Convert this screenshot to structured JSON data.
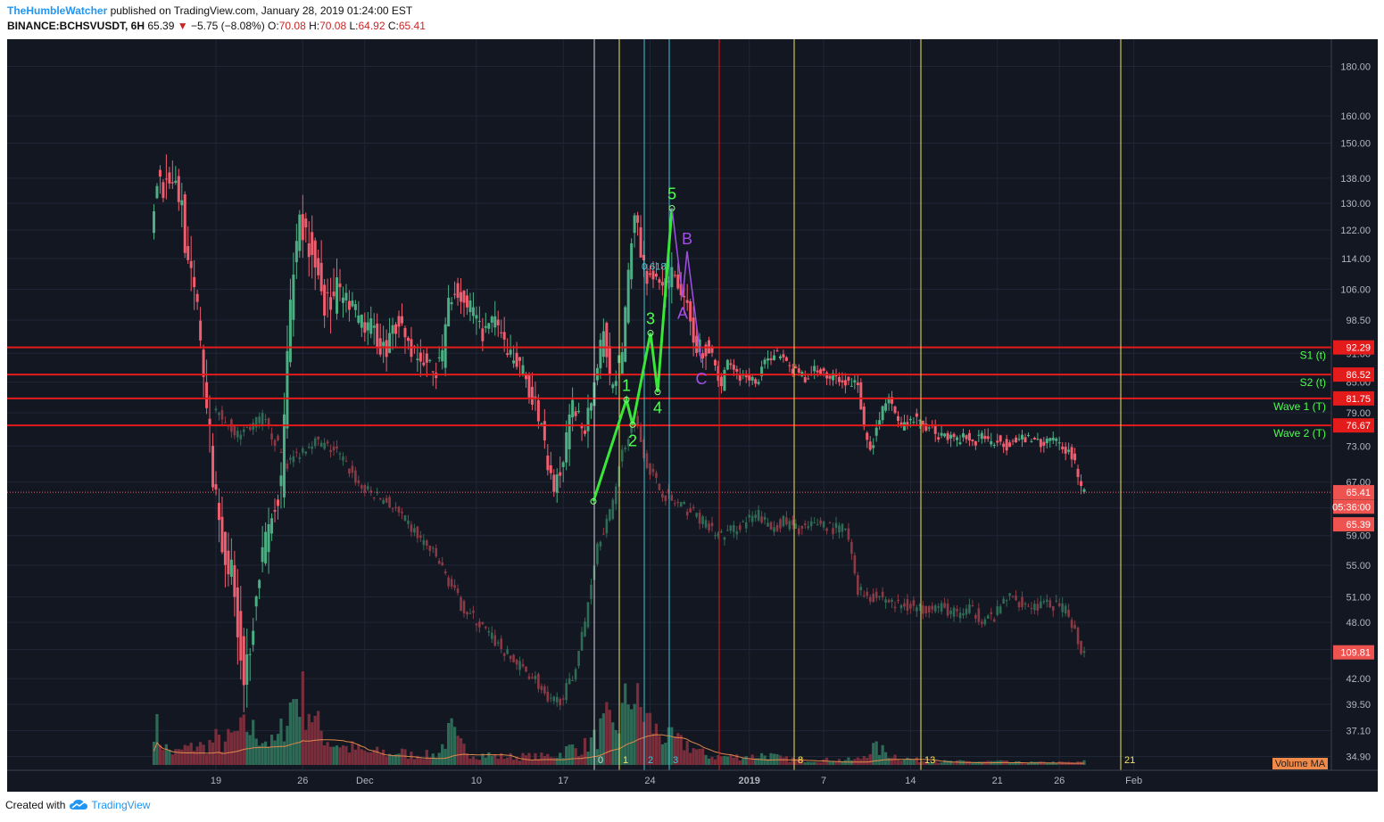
{
  "header": {
    "author": "TheHumbleWatcher",
    "published": " published on TradingView.com, January 28, 2019 01:24:00 EST",
    "symbol": "BINANCE:BCHSVUSDT, 6H",
    "last": "65.39",
    "change": "−5.75 (−8.08%)",
    "o_label": "O:",
    "o_value": "70.08",
    "h_label": "H:",
    "h_value": "70.08",
    "l_label": "L:",
    "l_value": "64.92",
    "c_label": "C:",
    "c_value": "65.41"
  },
  "footer": {
    "created": "Created with",
    "brand": "TradingView"
  },
  "colors": {
    "background": "#131722",
    "grid": "#1f2636",
    "up": "#4caf84",
    "down": "#ef5d6e",
    "up_vol": "#2e6b57",
    "down_vol": "#7a2e3c",
    "red_line": "#e31b1b",
    "green_text": "#4cff4c",
    "fib_yellow": "#f5e45a",
    "fib_cyan": "#3cc7d6",
    "purple": "#a24fe6",
    "vol_ma": "#e0884a"
  },
  "chart_data": {
    "type": "candlestick",
    "y_scale": "log",
    "ylim": [
      34.2,
      188
    ],
    "y_ticks": [
      "180.00",
      "160.00",
      "150.00",
      "138.00",
      "130.00",
      "122.00",
      "114.00",
      "106.00",
      "98.50",
      "91.00",
      "85.00",
      "79.00",
      "73.00",
      "67.00",
      "63.00",
      "59.00",
      "55.00",
      "51.00",
      "48.00",
      "45.00",
      "42.00",
      "39.50",
      "37.10",
      "34.90"
    ],
    "x_ticks": [
      {
        "label": "19",
        "day": 0
      },
      {
        "label": "26",
        "day": 7
      },
      {
        "label": "Dec",
        "day": 12
      },
      {
        "label": "10",
        "day": 21
      },
      {
        "label": "17",
        "day": 28
      },
      {
        "label": "24",
        "day": 35
      },
      {
        "label": "2019",
        "day": 43
      },
      {
        "label": "7",
        "day": 49
      },
      {
        "label": "14",
        "day": 56
      },
      {
        "label": "21",
        "day": 63
      },
      {
        "label": "26",
        "day": 68
      },
      {
        "label": "Feb",
        "day": 74
      }
    ],
    "xlim_days": [
      -5.2,
      77.5
    ],
    "price_path": [
      [
        -5,
        120
      ],
      [
        -4.5,
        140
      ],
      [
        -4,
        135
      ],
      [
        -3.5,
        140
      ],
      [
        -3,
        135
      ],
      [
        -2.5,
        130
      ],
      [
        -2,
        110
      ],
      [
        -1.5,
        105
      ],
      [
        -1,
        95
      ],
      [
        -0.5,
        80
      ],
      [
        0,
        68
      ],
      [
        0.5,
        62
      ],
      [
        1,
        56
      ],
      [
        1.5,
        54
      ],
      [
        2,
        48
      ],
      [
        2.5,
        42
      ],
      [
        3,
        46
      ],
      [
        3.5,
        52
      ],
      [
        4,
        56
      ],
      [
        4.5,
        60
      ],
      [
        5,
        62
      ],
      [
        5.5,
        66
      ],
      [
        6,
        90
      ],
      [
        6.5,
        110
      ],
      [
        7,
        125
      ],
      [
        7.5,
        120
      ],
      [
        8,
        115
      ],
      [
        8.5,
        110
      ],
      [
        9,
        103
      ],
      [
        9.5,
        102
      ],
      [
        10,
        105
      ],
      [
        10.5,
        104
      ],
      [
        11,
        102
      ],
      [
        11.5,
        100
      ],
      [
        12,
        98
      ],
      [
        12.5,
        97
      ],
      [
        13,
        96
      ],
      [
        13.5,
        93
      ],
      [
        14,
        92
      ],
      [
        14.5,
        96
      ],
      [
        15,
        99
      ],
      [
        15.5,
        95
      ],
      [
        16,
        92
      ],
      [
        16.5,
        90
      ],
      [
        17,
        89
      ],
      [
        17.5,
        88
      ],
      [
        18,
        88
      ],
      [
        18.5,
        90
      ],
      [
        19,
        104
      ],
      [
        19.5,
        106
      ],
      [
        20,
        104
      ],
      [
        20.5,
        102
      ],
      [
        21,
        100
      ],
      [
        21.5,
        96
      ],
      [
        22,
        96
      ],
      [
        22.5,
        98
      ],
      [
        23,
        96
      ],
      [
        23.5,
        93
      ],
      [
        24,
        91
      ],
      [
        24.5,
        89
      ],
      [
        25,
        87
      ],
      [
        25.5,
        84
      ],
      [
        26,
        80
      ],
      [
        26.5,
        76
      ],
      [
        27,
        70
      ],
      [
        27.5,
        66
      ],
      [
        28,
        68
      ],
      [
        28.5,
        74
      ],
      [
        29,
        81
      ],
      [
        29.5,
        78
      ],
      [
        30,
        77
      ],
      [
        30.5,
        82
      ],
      [
        31,
        88
      ],
      [
        31.5,
        96
      ],
      [
        32,
        85
      ],
      [
        32.5,
        87
      ],
      [
        33,
        90
      ],
      [
        33.5,
        110
      ],
      [
        34,
        128
      ],
      [
        34.5,
        116
      ],
      [
        35,
        110
      ],
      [
        35.5,
        108
      ],
      [
        36,
        106
      ],
      [
        36.5,
        107
      ],
      [
        37,
        110
      ],
      [
        37.5,
        108
      ],
      [
        38,
        104
      ],
      [
        38.5,
        97
      ],
      [
        39,
        93
      ],
      [
        39.5,
        92
      ],
      [
        40,
        92
      ],
      [
        40.5,
        88
      ],
      [
        41,
        84
      ],
      [
        41.5,
        90
      ],
      [
        42,
        88
      ],
      [
        42.5,
        86
      ],
      [
        43,
        87
      ],
      [
        43.5,
        85
      ],
      [
        44,
        86
      ],
      [
        44.5,
        90
      ],
      [
        45,
        90
      ],
      [
        45.5,
        91
      ],
      [
        46,
        90
      ],
      [
        46.5,
        88
      ],
      [
        47,
        87
      ],
      [
        47.5,
        86
      ],
      [
        48,
        86
      ],
      [
        48.5,
        88
      ],
      [
        49,
        87
      ],
      [
        49.5,
        86
      ],
      [
        50,
        86
      ],
      [
        50.5,
        85
      ],
      [
        51,
        85
      ],
      [
        51.5,
        85
      ],
      [
        52,
        84
      ],
      [
        52.5,
        76
      ],
      [
        53,
        72
      ],
      [
        53.5,
        76
      ],
      [
        54,
        80
      ],
      [
        54.5,
        82
      ],
      [
        55,
        78
      ],
      [
        55.5,
        76
      ],
      [
        56,
        77
      ],
      [
        56.5,
        78
      ],
      [
        57,
        77
      ],
      [
        57.5,
        76
      ],
      [
        58,
        76
      ],
      [
        58.5,
        75
      ],
      [
        59,
        75
      ],
      [
        59.5,
        75
      ],
      [
        60,
        74
      ],
      [
        60.5,
        75
      ],
      [
        61,
        74
      ],
      [
        61.5,
        74
      ],
      [
        62,
        75
      ],
      [
        62.5,
        74
      ],
      [
        63,
        74
      ],
      [
        63.5,
        74
      ],
      [
        64,
        73
      ],
      [
        64.5,
        74
      ],
      [
        65,
        75
      ],
      [
        65.5,
        74
      ],
      [
        66,
        74
      ],
      [
        66.5,
        74
      ],
      [
        67,
        73
      ],
      [
        67.5,
        74
      ],
      [
        68,
        74
      ],
      [
        68.5,
        73
      ],
      [
        69,
        72
      ],
      [
        69.5,
        70
      ],
      [
        70,
        66
      ]
    ],
    "volume_path": [
      [
        -5,
        0.55
      ],
      [
        -4.5,
        0.3
      ],
      [
        -4,
        0.2
      ],
      [
        -3.5,
        0.15
      ],
      [
        -3,
        0.15
      ],
      [
        -2.5,
        0.2
      ],
      [
        -2,
        0.2
      ],
      [
        -1.5,
        0.25
      ],
      [
        -1,
        0.2
      ],
      [
        -0.5,
        0.25
      ],
      [
        0,
        0.3
      ],
      [
        0.5,
        0.25
      ],
      [
        1,
        0.3
      ],
      [
        1.5,
        0.35
      ],
      [
        2,
        0.4
      ],
      [
        2.5,
        0.45
      ],
      [
        3,
        0.4
      ],
      [
        3.5,
        0.35
      ],
      [
        4,
        0.3
      ],
      [
        4.5,
        0.25
      ],
      [
        5,
        0.3
      ],
      [
        5.5,
        0.5
      ],
      [
        6,
        0.7
      ],
      [
        6.5,
        0.85
      ],
      [
        7,
        0.8
      ],
      [
        7.5,
        0.7
      ],
      [
        8,
        0.5
      ],
      [
        8.5,
        0.4
      ],
      [
        9,
        0.3
      ],
      [
        9.5,
        0.25
      ],
      [
        10,
        0.25
      ],
      [
        10.5,
        0.2
      ],
      [
        11,
        0.2
      ],
      [
        11.5,
        0.18
      ],
      [
        12,
        0.15
      ],
      [
        12.5,
        0.15
      ],
      [
        13,
        0.15
      ],
      [
        13.5,
        0.15
      ],
      [
        14,
        0.12
      ],
      [
        14.5,
        0.15
      ],
      [
        15,
        0.15
      ],
      [
        15.5,
        0.12
      ],
      [
        16,
        0.12
      ],
      [
        16.5,
        0.12
      ],
      [
        17,
        0.12
      ],
      [
        17.5,
        0.12
      ],
      [
        18,
        0.15
      ],
      [
        18.5,
        0.3
      ],
      [
        19,
        0.4
      ],
      [
        19.5,
        0.25
      ],
      [
        20,
        0.2
      ],
      [
        20.5,
        0.15
      ],
      [
        21,
        0.12
      ],
      [
        21.5,
        0.12
      ],
      [
        22,
        0.12
      ],
      [
        22.5,
        0.1
      ],
      [
        23,
        0.1
      ],
      [
        23.5,
        0.1
      ],
      [
        24,
        0.1
      ],
      [
        24.5,
        0.1
      ],
      [
        25,
        0.1
      ],
      [
        25.5,
        0.1
      ],
      [
        26,
        0.1
      ],
      [
        26.5,
        0.1
      ],
      [
        27,
        0.12
      ],
      [
        27.5,
        0.12
      ],
      [
        28,
        0.15
      ],
      [
        28.5,
        0.2
      ],
      [
        29,
        0.2
      ],
      [
        29.5,
        0.2
      ],
      [
        30,
        0.25
      ],
      [
        30.5,
        0.3
      ],
      [
        31,
        0.4
      ],
      [
        31.5,
        0.5
      ],
      [
        32,
        0.4
      ],
      [
        32.5,
        0.5
      ],
      [
        33,
        0.7
      ],
      [
        33.5,
        0.9
      ],
      [
        34,
        0.7
      ],
      [
        34.5,
        0.6
      ],
      [
        35,
        0.5
      ],
      [
        35.5,
        0.4
      ],
      [
        36,
        0.35
      ],
      [
        36.5,
        0.3
      ],
      [
        37,
        0.3
      ],
      [
        37.5,
        0.25
      ],
      [
        38,
        0.25
      ],
      [
        38.5,
        0.2
      ],
      [
        39,
        0.15
      ],
      [
        39.5,
        0.12
      ],
      [
        40,
        0.1
      ],
      [
        40.5,
        0.1
      ],
      [
        41,
        0.1
      ],
      [
        41.5,
        0.1
      ],
      [
        42,
        0.1
      ],
      [
        42.5,
        0.1
      ],
      [
        43,
        0.1
      ],
      [
        43.5,
        0.1
      ],
      [
        44,
        0.12
      ],
      [
        44.5,
        0.12
      ],
      [
        45,
        0.1
      ],
      [
        45.5,
        0.08
      ],
      [
        46,
        0.07
      ],
      [
        46.5,
        0.07
      ],
      [
        47,
        0.06
      ],
      [
        47.5,
        0.06
      ],
      [
        48,
        0.06
      ],
      [
        48.5,
        0.06
      ],
      [
        49,
        0.06
      ],
      [
        49.5,
        0.06
      ],
      [
        50,
        0.06
      ],
      [
        50.5,
        0.06
      ],
      [
        51,
        0.06
      ],
      [
        51.5,
        0.06
      ],
      [
        52,
        0.08
      ],
      [
        52.5,
        0.15
      ],
      [
        53,
        0.2
      ],
      [
        53.5,
        0.18
      ],
      [
        54,
        0.15
      ],
      [
        54.5,
        0.12
      ],
      [
        55,
        0.1
      ],
      [
        55.5,
        0.08
      ],
      [
        56,
        0.07
      ],
      [
        56.5,
        0.06
      ],
      [
        57,
        0.05
      ],
      [
        57.5,
        0.05
      ],
      [
        58,
        0.05
      ],
      [
        58.5,
        0.04
      ],
      [
        59,
        0.04
      ],
      [
        59.5,
        0.04
      ],
      [
        60,
        0.04
      ],
      [
        60.5,
        0.04
      ],
      [
        61,
        0.04
      ],
      [
        61.5,
        0.04
      ],
      [
        62,
        0.04
      ],
      [
        62.5,
        0.04
      ],
      [
        63,
        0.04
      ],
      [
        63.5,
        0.04
      ],
      [
        64,
        0.03
      ],
      [
        64.5,
        0.03
      ],
      [
        65,
        0.03
      ],
      [
        65.5,
        0.03
      ],
      [
        66,
        0.03
      ],
      [
        66.5,
        0.03
      ],
      [
        67,
        0.03
      ],
      [
        67.5,
        0.03
      ],
      [
        68,
        0.03
      ],
      [
        68.5,
        0.03
      ],
      [
        69,
        0.03
      ],
      [
        69.5,
        0.03
      ],
      [
        70,
        0.04
      ]
    ],
    "volume_ma_label": "Volume MA",
    "overlay_path": [
      [
        0,
        80
      ],
      [
        2,
        75
      ],
      [
        4,
        78
      ],
      [
        6,
        70
      ],
      [
        8,
        74
      ],
      [
        10,
        72
      ],
      [
        12,
        66
      ],
      [
        14,
        64
      ],
      [
        16,
        60
      ],
      [
        18,
        56
      ],
      [
        20,
        50
      ],
      [
        22,
        47
      ],
      [
        24,
        44
      ],
      [
        26,
        42
      ],
      [
        27,
        39.5
      ],
      [
        28,
        40
      ],
      [
        29,
        42
      ],
      [
        30,
        48
      ],
      [
        31,
        58
      ],
      [
        32,
        62
      ],
      [
        33,
        72
      ],
      [
        34,
        78
      ],
      [
        35,
        70
      ],
      [
        36,
        66
      ],
      [
        37,
        64
      ],
      [
        38,
        63
      ],
      [
        39,
        62
      ],
      [
        40,
        60
      ],
      [
        41,
        59
      ],
      [
        42,
        60
      ],
      [
        43,
        61
      ],
      [
        44,
        62
      ],
      [
        45,
        60
      ],
      [
        46,
        61
      ],
      [
        47,
        60
      ],
      [
        48,
        60
      ],
      [
        49,
        61
      ],
      [
        50,
        60
      ],
      [
        51,
        60
      ],
      [
        52,
        52
      ],
      [
        53,
        51
      ],
      [
        54,
        51
      ],
      [
        55,
        50
      ],
      [
        56,
        50
      ],
      [
        57,
        49.5
      ],
      [
        58,
        50
      ],
      [
        59,
        49.5
      ],
      [
        60,
        49
      ],
      [
        61,
        49.5
      ],
      [
        62,
        48.5
      ],
      [
        63,
        48.5
      ],
      [
        64,
        51
      ],
      [
        65,
        50.5
      ],
      [
        66,
        50
      ],
      [
        67,
        50
      ],
      [
        68,
        50
      ],
      [
        69,
        49
      ],
      [
        70,
        45
      ]
    ],
    "horizontal_lines": [
      {
        "price": 92.29,
        "label": "S1 (t)",
        "tag": "92.29"
      },
      {
        "price": 86.52,
        "label": "S2 (t)",
        "tag": "86.52"
      },
      {
        "price": 81.75,
        "label": "Wave 1 (T)",
        "tag": "81.75"
      },
      {
        "price": 76.67,
        "label": "Wave 2 (T)",
        "tag": "76.67"
      }
    ],
    "last_price_line": 65.41,
    "price_tags": [
      {
        "price": 65.41,
        "text": "65.41"
      },
      {
        "price": 63.2,
        "text": "05:36:00"
      },
      {
        "price": 60.6,
        "text": "65.39"
      },
      {
        "price": 44.7,
        "text": "109.81"
      }
    ],
    "vertical_lines": [
      {
        "day": 27,
        "color": "white",
        "label": "0"
      },
      {
        "day": 28,
        "color": "yellow",
        "label": "1"
      },
      {
        "day": 29,
        "color": "cyan",
        "label": "2"
      },
      {
        "day": 30,
        "color": "cyan",
        "label": "3"
      },
      {
        "day": 32,
        "color": "red",
        "label": ""
      },
      {
        "day": 35,
        "color": "yellow",
        "label": "8"
      },
      {
        "day": 40,
        "color": "yellow",
        "label": "13"
      },
      {
        "day": 48,
        "color": "yellow",
        "label": "21"
      }
    ],
    "vertical_line_x": [
      666,
      694,
      722,
      750,
      806,
      890,
      1032,
      1256
    ],
    "elliott_impulse": [
      {
        "x": 665,
        "price": 64.0,
        "label": ""
      },
      {
        "x": 702,
        "price": 81.5,
        "label": "1"
      },
      {
        "x": 709,
        "price": 76.8,
        "label": "2"
      },
      {
        "x": 729,
        "price": 95.5,
        "label": "3"
      },
      {
        "x": 737,
        "price": 83.0,
        "label": "4"
      },
      {
        "x": 753,
        "price": 128.5,
        "label": "5"
      }
    ],
    "elliott_correction": [
      {
        "x": 753,
        "price": 128.5,
        "label": ""
      },
      {
        "x": 765,
        "price": 104.0,
        "label": "A"
      },
      {
        "x": 770,
        "price": 116.0,
        "label": "B"
      },
      {
        "x": 786,
        "price": 89.0,
        "label": "C"
      }
    ],
    "fib_label": "0.618"
  }
}
